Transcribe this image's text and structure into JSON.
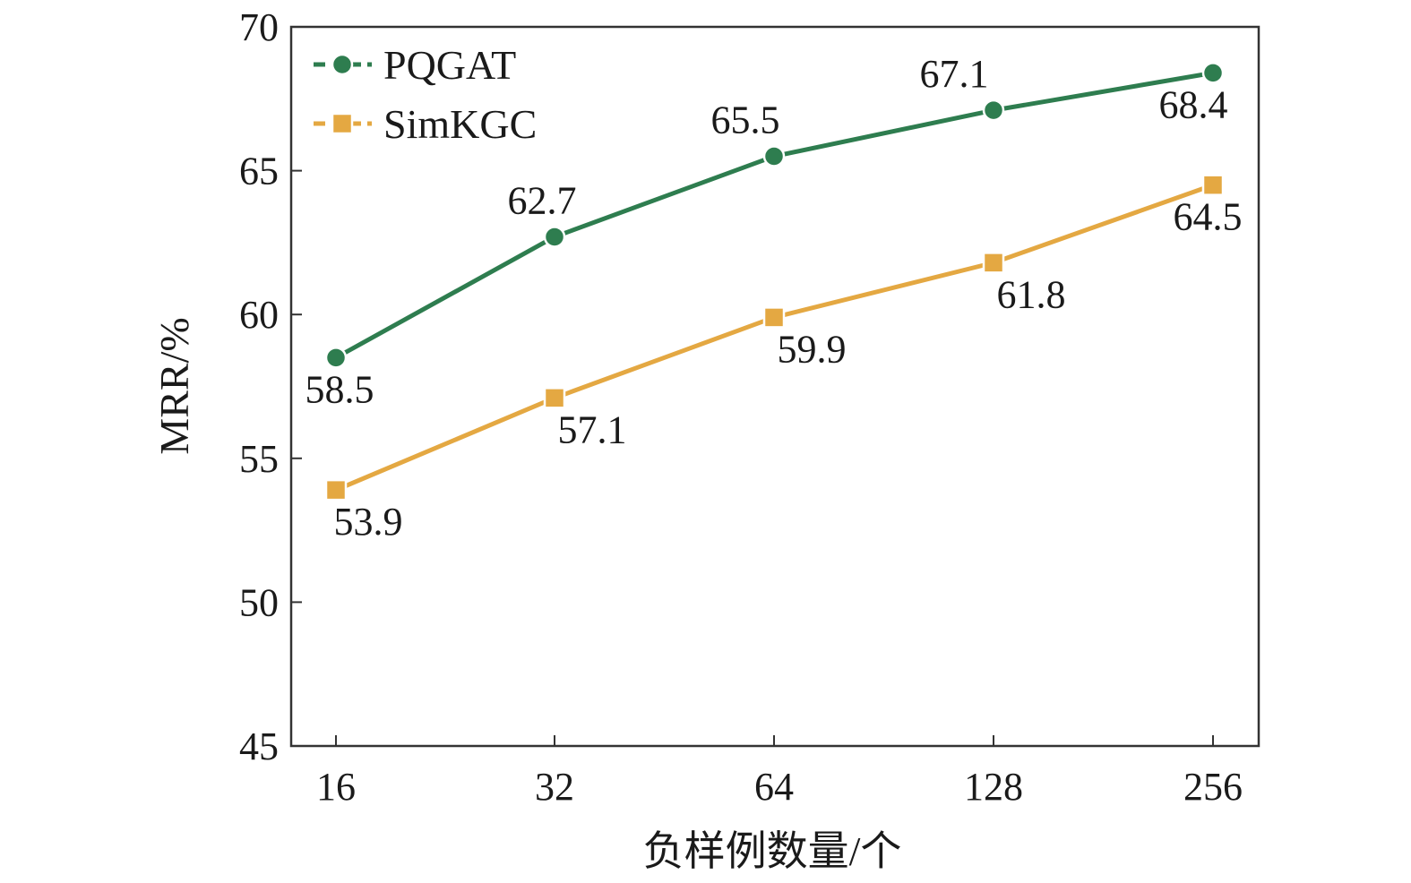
{
  "chart_data": {
    "type": "line",
    "title": "",
    "xlabel": "负样例数量/个",
    "ylabel": "MRR/%",
    "categories": [
      "16",
      "32",
      "64",
      "128",
      "256"
    ],
    "ylim": [
      45,
      70
    ],
    "yticks": [
      45,
      50,
      55,
      60,
      65,
      70
    ],
    "grid": false,
    "legend_position": "top-left",
    "series": [
      {
        "name": "PQGAT",
        "values": [
          58.5,
          62.7,
          65.5,
          67.1,
          68.4
        ],
        "labels": [
          "58.5",
          "62.7",
          "65.5",
          "67.1",
          "68.4"
        ],
        "color": "#2e7d4f",
        "marker": "circle",
        "label_side": [
          "below",
          "above",
          "above",
          "above",
          "below"
        ]
      },
      {
        "name": "SimKGC",
        "values": [
          53.9,
          57.1,
          59.9,
          61.8,
          64.5
        ],
        "labels": [
          "53.9",
          "57.1",
          "59.9",
          "61.8",
          "64.5"
        ],
        "color": "#e4a842",
        "marker": "square",
        "label_side": [
          "below",
          "below",
          "below",
          "below",
          "below"
        ]
      }
    ]
  }
}
